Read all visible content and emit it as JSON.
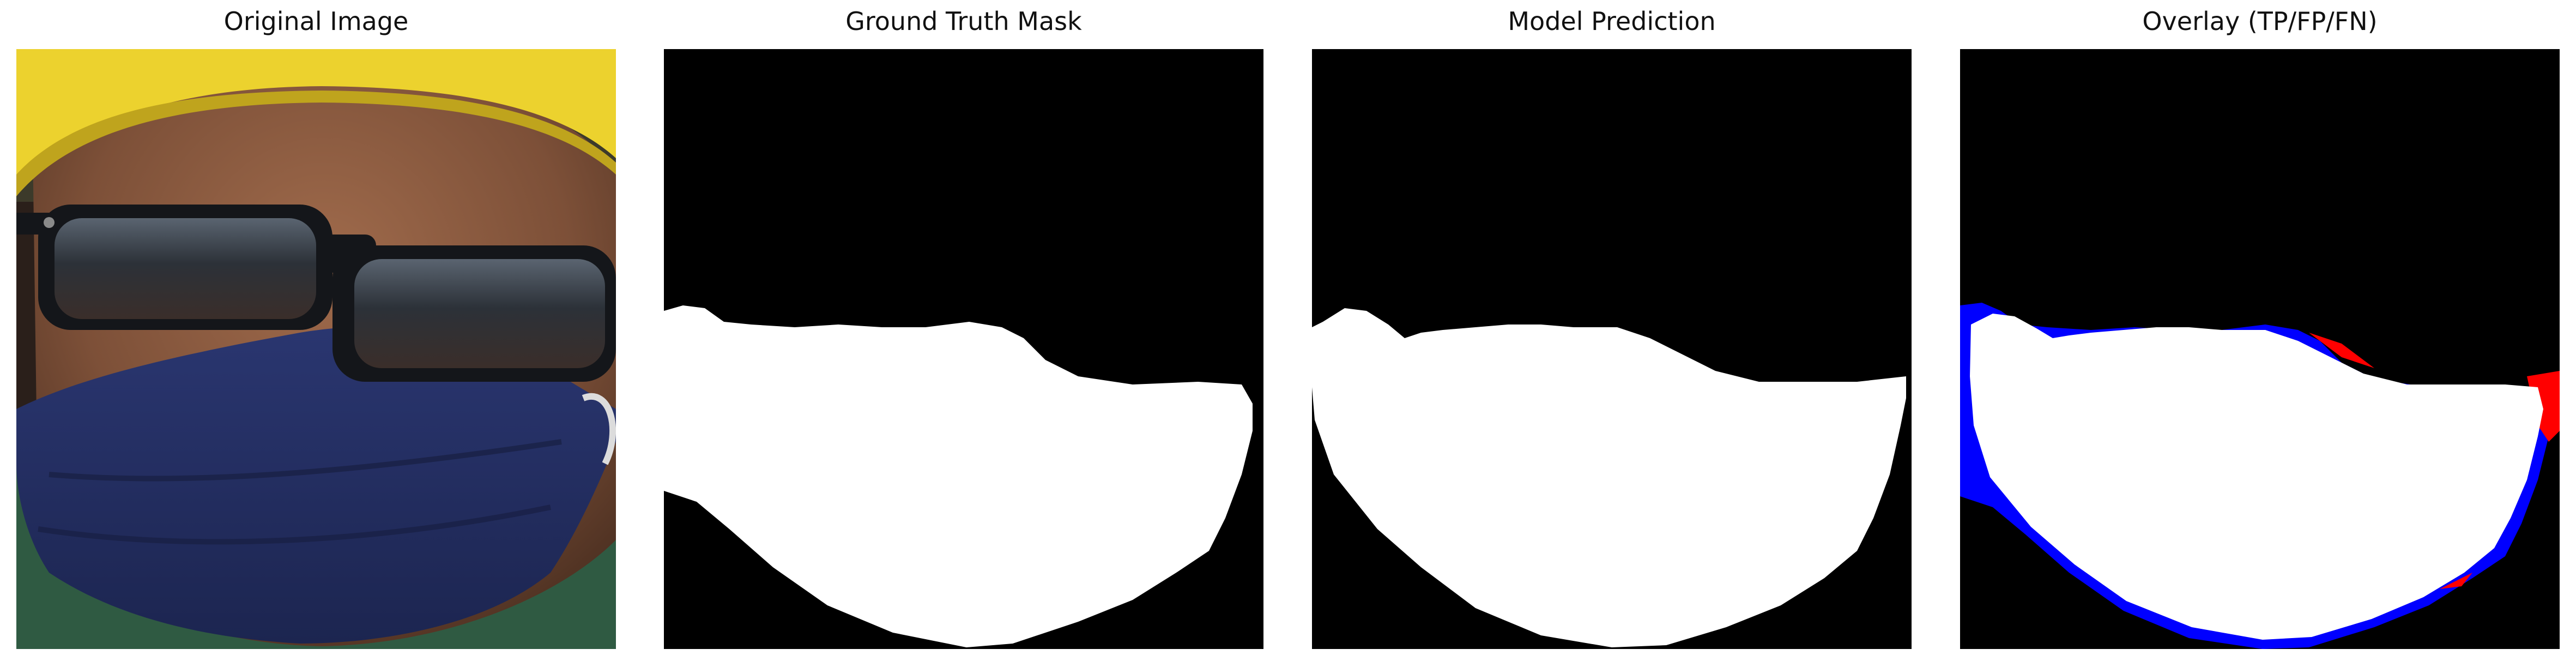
{
  "figure": {
    "panels": [
      {
        "title": "Original Image"
      },
      {
        "title": "Ground Truth Mask"
      },
      {
        "title": "Model Prediction"
      },
      {
        "title": "Overlay (TP/FP/FN)"
      }
    ]
  },
  "colors": {
    "background": "#000000",
    "mask": "#ffffff",
    "false_negative": "#0000ff",
    "false_positive": "#ff0000",
    "helmet": "#ecd22e",
    "skin": "#8a5a3e",
    "face_mask": "#243062",
    "sunglasses": "#14161a",
    "shirt": "#2f5a42"
  }
}
